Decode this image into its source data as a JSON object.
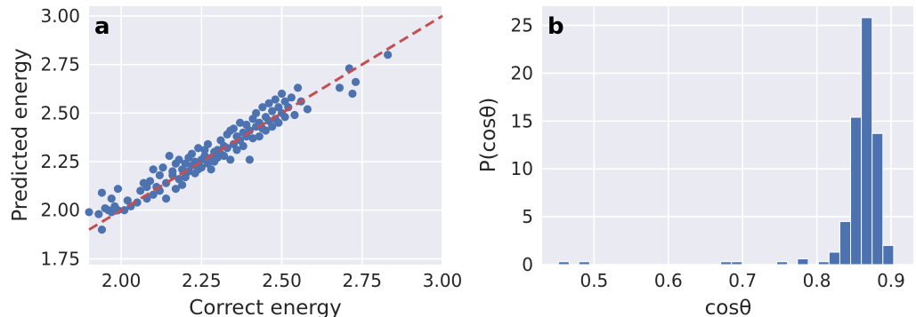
{
  "chart_data": [
    {
      "type": "scatter",
      "panel_label": "a",
      "xlabel": "Correct energy",
      "ylabel": "Predicted energy",
      "xlim": [
        1.9,
        3.0
      ],
      "ylim": [
        1.72,
        3.05
      ],
      "x_ticks": [
        "2.00",
        "2.25",
        "2.50",
        "2.75",
        "3.00"
      ],
      "y_ticks": [
        "1.75",
        "2.00",
        "2.25",
        "2.50",
        "2.75",
        "3.00"
      ],
      "grid": true,
      "reference_line": {
        "style": "dashed",
        "color": "#c44e52",
        "from": [
          1.9,
          1.9
        ],
        "to": [
          3.0,
          3.0
        ]
      },
      "marker_color": "#4c72b0",
      "points": [
        [
          1.9,
          1.99
        ],
        [
          1.93,
          1.98
        ],
        [
          1.94,
          1.9
        ],
        [
          1.95,
          2.01
        ],
        [
          1.96,
          2.0
        ],
        [
          1.97,
          1.99
        ],
        [
          1.98,
          2.02
        ],
        [
          1.99,
          2.0
        ],
        [
          1.94,
          2.09
        ],
        [
          1.97,
          2.06
        ],
        [
          1.99,
          2.11
        ],
        [
          2.01,
          2.0
        ],
        [
          2.02,
          2.05
        ],
        [
          2.03,
          2.02
        ],
        [
          2.05,
          2.04
        ],
        [
          2.06,
          2.1
        ],
        [
          2.07,
          2.14
        ],
        [
          2.08,
          2.06
        ],
        [
          2.08,
          2.12
        ],
        [
          2.09,
          2.15
        ],
        [
          2.1,
          2.08
        ],
        [
          2.1,
          2.21
        ],
        [
          2.11,
          2.12
        ],
        [
          2.12,
          2.1
        ],
        [
          2.12,
          2.18
        ],
        [
          2.13,
          2.22
        ],
        [
          2.14,
          2.06
        ],
        [
          2.14,
          2.14
        ],
        [
          2.15,
          2.28
        ],
        [
          2.16,
          2.18
        ],
        [
          2.16,
          2.2
        ],
        [
          2.17,
          2.11
        ],
        [
          2.17,
          2.24
        ],
        [
          2.18,
          2.16
        ],
        [
          2.18,
          2.26
        ],
        [
          2.19,
          2.21
        ],
        [
          2.19,
          2.13
        ],
        [
          2.2,
          2.24
        ],
        [
          2.2,
          2.17
        ],
        [
          2.21,
          2.27
        ],
        [
          2.21,
          2.2
        ],
        [
          2.22,
          2.23
        ],
        [
          2.22,
          2.29
        ],
        [
          2.23,
          2.19
        ],
        [
          2.23,
          2.25
        ],
        [
          2.24,
          2.32
        ],
        [
          2.24,
          2.21
        ],
        [
          2.25,
          2.26
        ],
        [
          2.25,
          2.22
        ],
        [
          2.26,
          2.28
        ],
        [
          2.26,
          2.31
        ],
        [
          2.27,
          2.24
        ],
        [
          2.27,
          2.34
        ],
        [
          2.28,
          2.27
        ],
        [
          2.28,
          2.21
        ],
        [
          2.29,
          2.3
        ],
        [
          2.29,
          2.25
        ],
        [
          2.3,
          2.31
        ],
        [
          2.3,
          2.27
        ],
        [
          2.31,
          2.36
        ],
        [
          2.31,
          2.29
        ],
        [
          2.32,
          2.33
        ],
        [
          2.32,
          2.28
        ],
        [
          2.33,
          2.39
        ],
        [
          2.33,
          2.32
        ],
        [
          2.34,
          2.26
        ],
        [
          2.34,
          2.41
        ],
        [
          2.35,
          2.34
        ],
        [
          2.35,
          2.42
        ],
        [
          2.36,
          2.38
        ],
        [
          2.36,
          2.31
        ],
        [
          2.37,
          2.45
        ],
        [
          2.37,
          2.36
        ],
        [
          2.38,
          2.4
        ],
        [
          2.38,
          2.33
        ],
        [
          2.39,
          2.44
        ],
        [
          2.39,
          2.38
        ],
        [
          2.4,
          2.26
        ],
        [
          2.4,
          2.41
        ],
        [
          2.41,
          2.47
        ],
        [
          2.41,
          2.37
        ],
        [
          2.42,
          2.43
        ],
        [
          2.42,
          2.5
        ],
        [
          2.43,
          2.38
        ],
        [
          2.43,
          2.45
        ],
        [
          2.44,
          2.53
        ],
        [
          2.44,
          2.42
        ],
        [
          2.45,
          2.48
        ],
        [
          2.45,
          2.41
        ],
        [
          2.46,
          2.55
        ],
        [
          2.46,
          2.46
        ],
        [
          2.47,
          2.51
        ],
        [
          2.47,
          2.43
        ],
        [
          2.48,
          2.57
        ],
        [
          2.48,
          2.47
        ],
        [
          2.49,
          2.53
        ],
        [
          2.49,
          2.45
        ],
        [
          2.5,
          2.6
        ],
        [
          2.5,
          2.5
        ],
        [
          2.51,
          2.56
        ],
        [
          2.51,
          2.48
        ],
        [
          2.52,
          2.53
        ],
        [
          2.53,
          2.58
        ],
        [
          2.54,
          2.49
        ],
        [
          2.55,
          2.63
        ],
        [
          2.56,
          2.56
        ],
        [
          2.58,
          2.52
        ],
        [
          2.68,
          2.63
        ],
        [
          2.71,
          2.73
        ],
        [
          2.72,
          2.6
        ],
        [
          2.73,
          2.66
        ],
        [
          2.83,
          2.8
        ]
      ]
    },
    {
      "type": "bar",
      "panel_label": "b",
      "xlabel": "cosθ",
      "ylabel": "P(cosθ)",
      "xlim": [
        0.43,
        0.93
      ],
      "ylim": [
        0,
        27
      ],
      "x_ticks": [
        "0.5",
        "0.6",
        "0.7",
        "0.8",
        "0.9"
      ],
      "y_ticks": [
        "0",
        "5",
        "10",
        "15",
        "20",
        "25"
      ],
      "grid": true,
      "bar_color": "#4c72b0",
      "bin_width": 0.0145,
      "bins": [
        {
          "left": 0.452,
          "value": 0.3
        },
        {
          "left": 0.4795,
          "value": 0.3
        },
        {
          "left": 0.6705,
          "value": 0.3
        },
        {
          "left": 0.685,
          "value": 0.3
        },
        {
          "left": 0.746,
          "value": 0.3
        },
        {
          "left": 0.774,
          "value": 0.6
        },
        {
          "left": 0.802,
          "value": 0.3
        },
        {
          "left": 0.8165,
          "value": 1.3
        },
        {
          "left": 0.831,
          "value": 4.5
        },
        {
          "left": 0.8455,
          "value": 15.4
        },
        {
          "left": 0.86,
          "value": 25.8
        },
        {
          "left": 0.8745,
          "value": 13.7
        },
        {
          "left": 0.889,
          "value": 2.0
        }
      ]
    }
  ]
}
